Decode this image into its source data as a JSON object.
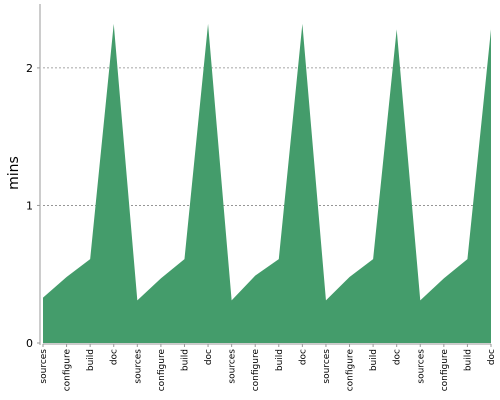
{
  "chart_data": {
    "type": "area",
    "categories": [
      "sources",
      "configure",
      "build",
      "doc",
      "sources",
      "configure",
      "build",
      "doc",
      "sources",
      "configure",
      "build",
      "doc",
      "sources",
      "configure",
      "build",
      "doc",
      "sources",
      "configure",
      "build",
      "doc"
    ],
    "series": [
      {
        "values": [
          0.33,
          0.48,
          0.61,
          2.32,
          0.31,
          0.47,
          0.61,
          2.32,
          0.31,
          0.49,
          0.61,
          2.32,
          0.31,
          0.48,
          0.61,
          2.28,
          0.31,
          0.47,
          0.61,
          2.28
        ]
      }
    ],
    "ylabel": "mins",
    "ylim": [
      0,
      2.45
    ],
    "yticks": [
      0,
      1,
      2
    ],
    "grid": true,
    "colors": {
      "fill": "#449c6b",
      "grid": "#888888",
      "axis": "#999999"
    }
  }
}
